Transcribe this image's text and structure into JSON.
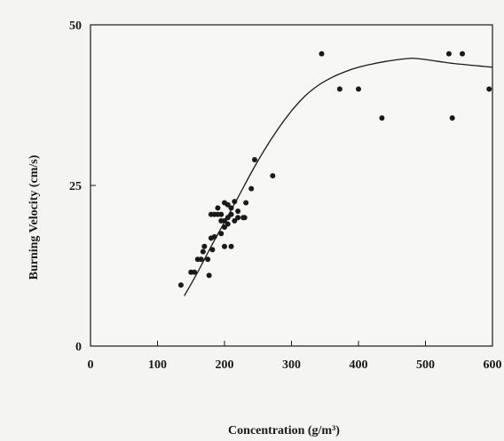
{
  "chart_data": {
    "type": "scatter",
    "title": "",
    "xlabel": "Concentration (g/m³)",
    "ylabel": "Burning Velocity (cm/s)",
    "xlim": [
      0,
      600
    ],
    "ylim": [
      0,
      50
    ],
    "x_ticks": [
      "0",
      "100",
      "200",
      "300",
      "400",
      "500",
      "600"
    ],
    "y_ticks": [
      "0",
      "25",
      "50"
    ],
    "grid": false,
    "legend": "none",
    "colors": {
      "points": "#1a1a1a",
      "line": "#1a1a1a",
      "axes": "#1a1a1a"
    },
    "series": [
      {
        "kind": "points",
        "x": [
          135,
          150,
          155,
          160,
          165,
          168,
          170,
          175,
          177,
          180,
          180,
          182,
          185,
          185,
          190,
          190,
          195,
          195,
          195,
          200,
          200,
          200,
          200,
          205,
          205,
          205,
          210,
          210,
          210,
          215,
          215,
          220,
          220,
          228,
          230,
          232,
          240,
          245,
          272,
          345,
          372,
          400,
          435,
          535,
          540,
          555,
          595
        ],
        "y": [
          9.5,
          11.5,
          11.5,
          13.5,
          13.5,
          14.7,
          15.5,
          13.5,
          11,
          16.8,
          20.5,
          15,
          20.5,
          17,
          21.5,
          20.5,
          17.5,
          19.5,
          20.5,
          22.3,
          18.5,
          19.5,
          15.5,
          22,
          19,
          20,
          21.5,
          20.5,
          15.5,
          22.5,
          19.5,
          21,
          20,
          20,
          20,
          22.3,
          24.5,
          29,
          26.5,
          45.5,
          40,
          40,
          35.5,
          45.5,
          35.5,
          45.5,
          40
        ]
      },
      {
        "kind": "fit-line",
        "x": [
          140,
          160,
          180,
          200,
          220,
          240,
          260,
          280,
          300,
          320,
          340,
          360,
          380,
          400,
          420,
          440,
          460,
          480,
          500,
          520,
          540,
          560,
          580,
          600
        ],
        "y": [
          7.8,
          11.5,
          15.5,
          19.3,
          23.1,
          27,
          30.6,
          33.8,
          36.6,
          38.9,
          40.6,
          41.8,
          42.7,
          43.4,
          43.9,
          44.3,
          44.6,
          44.8,
          44.6,
          44.3,
          44,
          43.8,
          43.6,
          43.4
        ]
      }
    ]
  }
}
